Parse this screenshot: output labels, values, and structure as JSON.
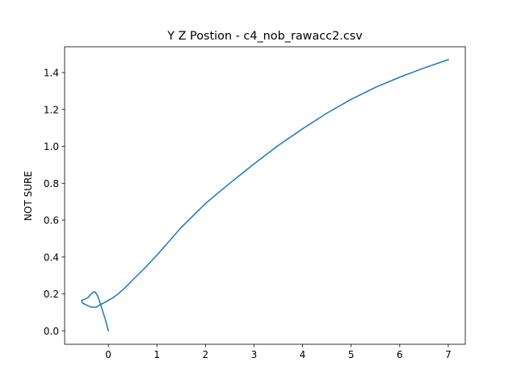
{
  "chart_data": {
    "type": "line",
    "title": "Y Z Postion - c4_nob_rawacc2.csv",
    "xlabel": "",
    "ylabel": "NOT SURE",
    "xlim": [
      -0.9,
      7.35
    ],
    "ylim": [
      -0.073,
      1.54
    ],
    "xticks": [
      0,
      1,
      2,
      3,
      4,
      5,
      6,
      7
    ],
    "yticks": [
      0.0,
      0.2,
      0.4,
      0.6,
      0.8,
      1.0,
      1.2,
      1.4
    ],
    "xtick_labels": [
      "0",
      "1",
      "2",
      "3",
      "4",
      "5",
      "6",
      "7"
    ],
    "ytick_labels": [
      "0.0",
      "0.2",
      "0.4",
      "0.6",
      "0.8",
      "1.0",
      "1.2",
      "1.4"
    ],
    "grid": false,
    "series": [
      {
        "color": "#1f77b4",
        "x": [
          0.0,
          -0.06,
          -0.12,
          -0.17,
          -0.22,
          -0.27,
          -0.31,
          -0.35,
          -0.42,
          -0.5,
          -0.55,
          -0.53,
          -0.45,
          -0.35,
          -0.25,
          -0.18,
          -0.1,
          0.0,
          0.1,
          0.2,
          0.35,
          0.5,
          0.75,
          1.0,
          1.5,
          2.0,
          2.5,
          3.0,
          3.5,
          4.0,
          4.5,
          5.0,
          5.5,
          6.0,
          6.5,
          7.0
        ],
        "y": [
          0.0,
          0.06,
          0.11,
          0.15,
          0.19,
          0.21,
          0.21,
          0.2,
          0.18,
          0.17,
          0.165,
          0.15,
          0.14,
          0.128,
          0.128,
          0.14,
          0.15,
          0.165,
          0.18,
          0.2,
          0.235,
          0.275,
          0.34,
          0.41,
          0.56,
          0.69,
          0.8,
          0.905,
          1.005,
          1.095,
          1.18,
          1.255,
          1.32,
          1.375,
          1.425,
          1.47
        ]
      }
    ]
  }
}
